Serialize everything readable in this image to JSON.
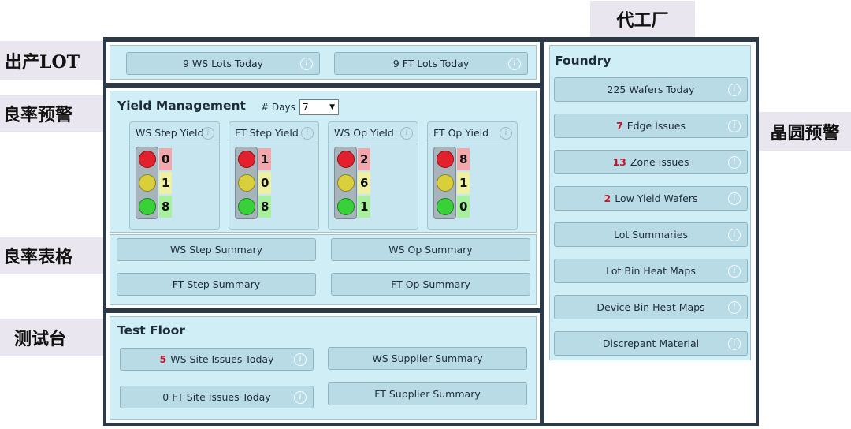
{
  "callouts": {
    "foundry_cn": "代工厂",
    "output_lot": "出产LOT",
    "yield_alert": "良率预警",
    "wafer_alert": "晶圆预警",
    "yield_table": "良率表格",
    "test_floor_cn": "测试台"
  },
  "lots": {
    "ws_label": "9 WS Lots Today",
    "ft_label": "9 FT Lots Today"
  },
  "yield": {
    "title": "Yield Management",
    "days_label": "# Days",
    "days_value": "7",
    "cards": [
      {
        "title": "WS Step Yield",
        "red": "0",
        "yellow": "1",
        "green": "8"
      },
      {
        "title": "FT Step Yield",
        "red": "1",
        "yellow": "0",
        "green": "8"
      },
      {
        "title": "WS Op Yield",
        "red": "2",
        "yellow": "6",
        "green": "1"
      },
      {
        "title": "FT Op Yield",
        "red": "8",
        "yellow": "1",
        "green": "0"
      }
    ]
  },
  "summaries": {
    "ws_step": "WS Step Summary",
    "ws_op": "WS Op Summary",
    "ft_step": "FT Step Summary",
    "ft_op": "FT Op Summary"
  },
  "test_floor": {
    "title": "Test Floor",
    "ws_site_count": "5",
    "ws_site_label": "WS Site Issues Today",
    "ft_site_label": "0 FT Site Issues Today",
    "ws_supplier": "WS Supplier Summary",
    "ft_supplier": "FT Supplier Summary"
  },
  "foundry": {
    "title": "Foundry",
    "wafers_today": "225 Wafers Today",
    "edge_count": "7",
    "edge_label": "Edge Issues",
    "zone_count": "13",
    "zone_label": "Zone Issues",
    "low_yield_count": "2",
    "low_yield_label": "Low Yield Wafers",
    "lot_summaries": "Lot Summaries",
    "lot_bin_heat_maps": "Lot Bin Heat Maps",
    "device_bin_heat_maps": "Device Bin Heat Maps",
    "discrepant_material": "Discrepant Material"
  },
  "icons": {
    "info": "info-icon",
    "dropdown": "chevron-down-icon"
  },
  "colors": {
    "frame": "#2c3a47",
    "panel_bg": "#cfeef6",
    "button_bg": "#b9dbe6",
    "alert_red": "#c0182c",
    "light_red": "#e3212c",
    "light_yellow": "#d8cf3a",
    "light_green": "#38d13a"
  }
}
